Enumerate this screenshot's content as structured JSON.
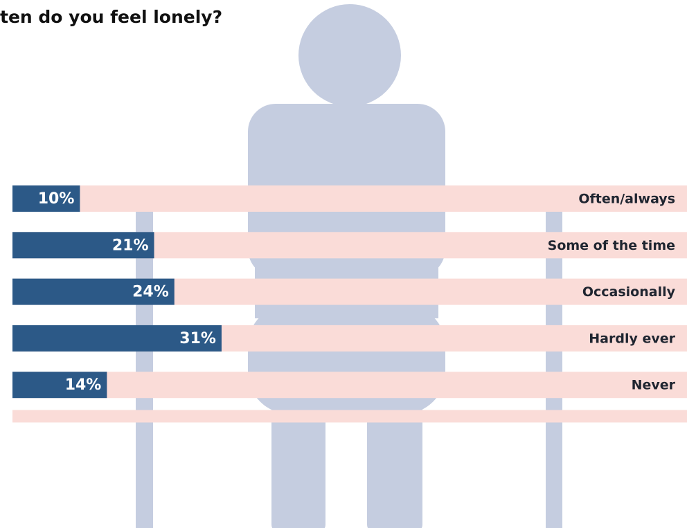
{
  "chart_data": {
    "type": "bar",
    "orientation": "horizontal",
    "title": "ten do you feel lonely?",
    "categories": [
      "Often/always",
      "Some of the time",
      "Occasionally",
      "Hardly ever",
      "Never"
    ],
    "values": [
      10,
      21,
      24,
      31,
      14
    ],
    "value_labels": [
      "10%",
      "21%",
      "24%",
      "31%",
      "14%"
    ],
    "xlim": [
      0,
      100
    ],
    "color": "#2c5987",
    "track_color": "#fadcd8"
  }
}
